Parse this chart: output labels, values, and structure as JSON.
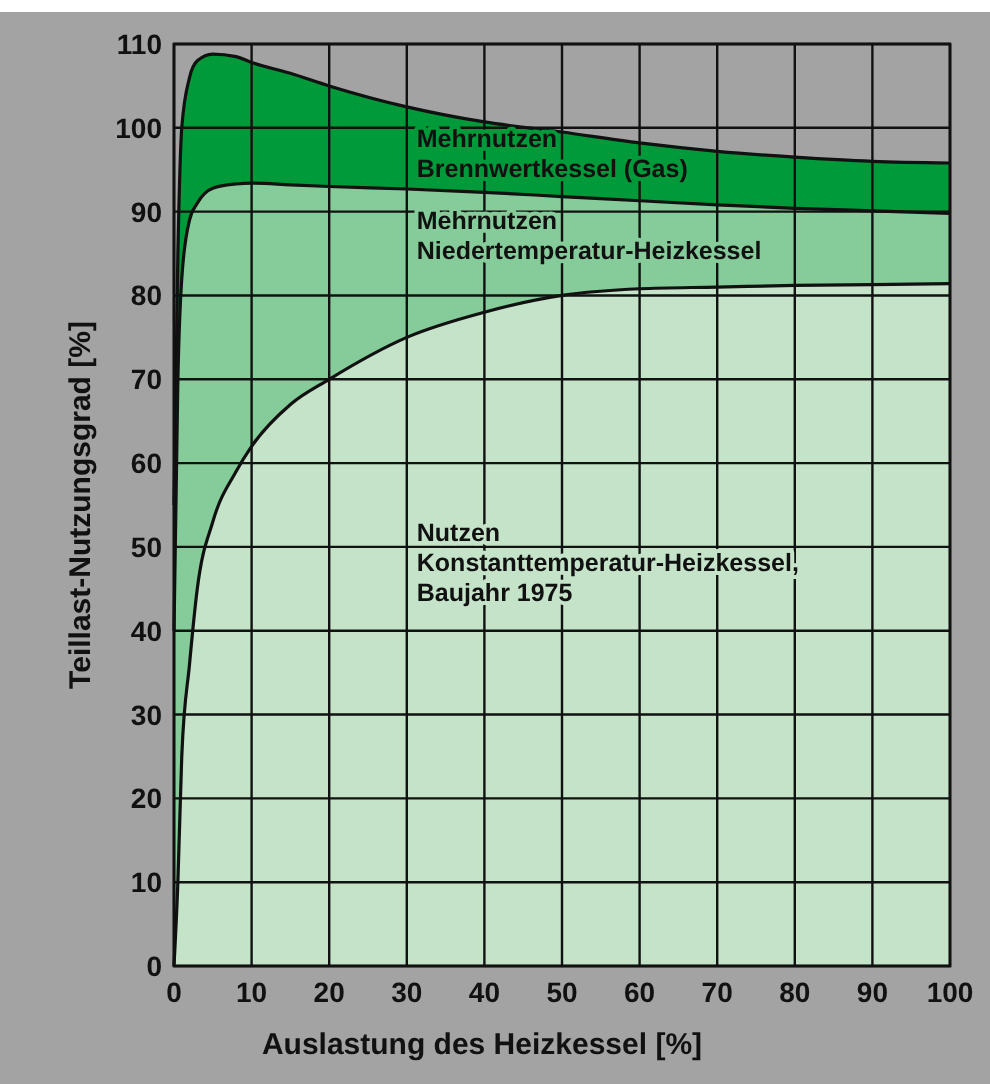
{
  "chart_data": {
    "type": "area",
    "xlabel": "Auslastung des Heizkessel [%]",
    "ylabel": "Teillast-Nutzungsgrad [%]",
    "xlim": [
      0,
      100
    ],
    "ylim": [
      0,
      110
    ],
    "xticks": [
      0,
      10,
      20,
      30,
      40,
      50,
      60,
      70,
      80,
      90,
      100
    ],
    "yticks": [
      0,
      10,
      20,
      30,
      40,
      50,
      60,
      70,
      80,
      90,
      100,
      110
    ],
    "grid": true,
    "x": [
      0,
      0.5,
      1,
      2,
      3,
      5,
      8,
      10,
      15,
      20,
      30,
      40,
      50,
      60,
      70,
      80,
      90,
      100
    ],
    "series": [
      {
        "color": "#009a3a",
        "values": [
          55,
          85,
          100,
          106,
          108,
          108.8,
          108.5,
          107.8,
          106.5,
          105,
          102.5,
          100.7,
          99.5,
          98.2,
          97.2,
          96.5,
          96,
          95.8
        ]
      },
      {
        "color": "#86cc9a",
        "values": [
          40,
          70,
          82,
          89,
          91,
          92.8,
          93.3,
          93.4,
          93.2,
          93,
          92.7,
          92.3,
          91.8,
          91.3,
          90.8,
          90.4,
          90.1,
          89.8
        ]
      },
      {
        "color": "#c4e3c8",
        "values": [
          0,
          10,
          25,
          36,
          45,
          53,
          59,
          62,
          67,
          70,
          75,
          78,
          80,
          80.8,
          81,
          81.2,
          81.3,
          81.4
        ]
      }
    ],
    "annotations": [
      "Mehrnutzen\nBrennwertkessel (Gas)",
      "Mehrnutzen\nNiedertemperatur-Heizkessel",
      "Nutzen\nKonstanttemperatur-Heizkessel,\nBaujahr 1975"
    ]
  }
}
